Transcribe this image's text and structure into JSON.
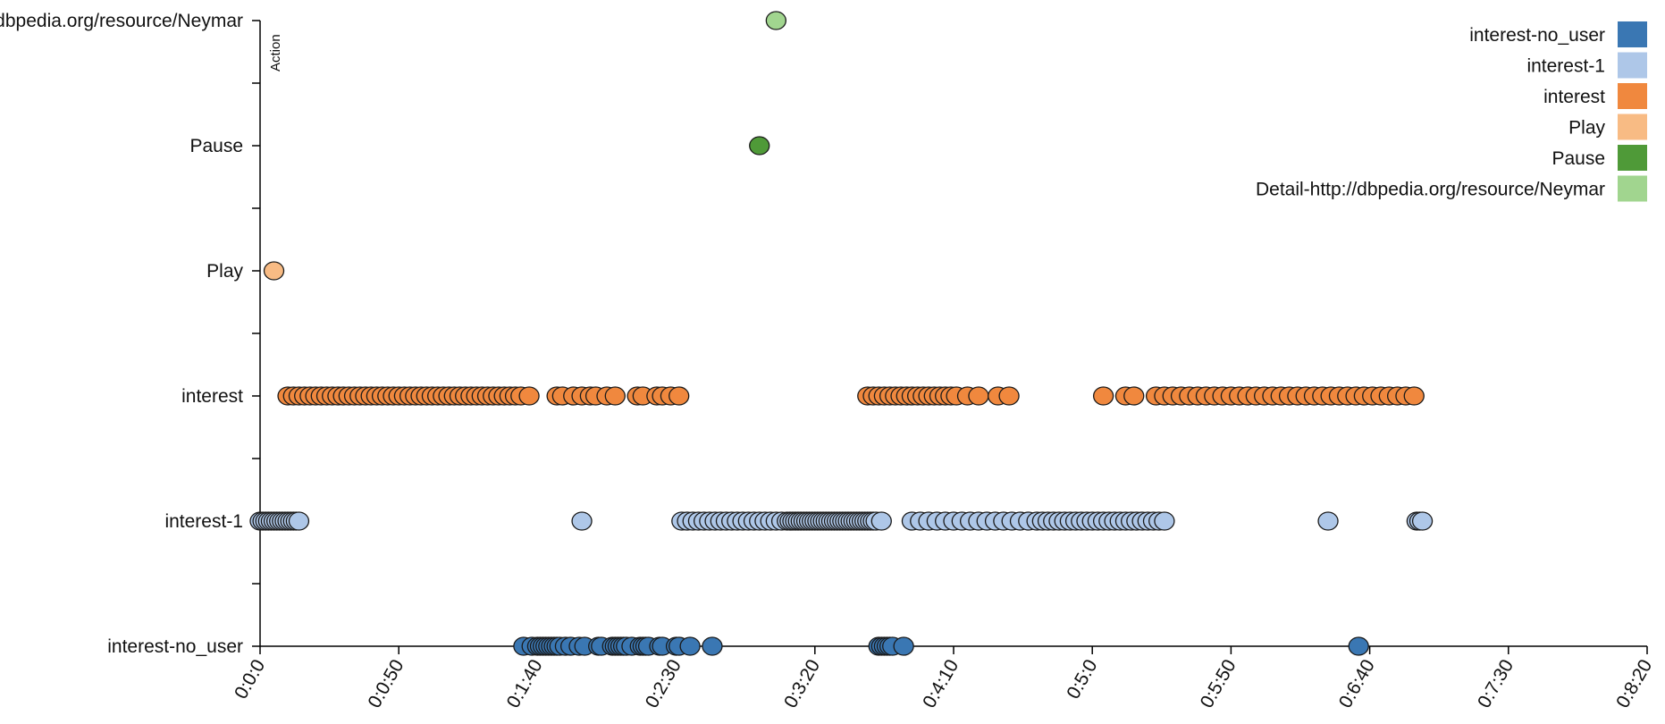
{
  "chart_data": {
    "type": "scatter",
    "title": "",
    "xlabel": "",
    "ylabel": "Action",
    "xlim": [
      0,
      500
    ],
    "x_ticks": [
      {
        "value": 0,
        "label": "0:0:0"
      },
      {
        "value": 50,
        "label": "0:0:50"
      },
      {
        "value": 100,
        "label": "0:1:40"
      },
      {
        "value": 150,
        "label": "0:2:30"
      },
      {
        "value": 200,
        "label": "0:3:20"
      },
      {
        "value": 250,
        "label": "0:4:10"
      },
      {
        "value": 300,
        "label": "0:5:0"
      },
      {
        "value": 350,
        "label": "0:5:50"
      },
      {
        "value": 400,
        "label": "0:6:40"
      },
      {
        "value": 450,
        "label": "0:7:30"
      },
      {
        "value": 500,
        "label": "0:8:20"
      }
    ],
    "y_categories": [
      "interest-no_user",
      "interest-1",
      "interest",
      "Play",
      "Pause",
      "Detail-http://dbpedia.org/resource/Neymar"
    ],
    "y_tick_labels": [
      "interest-no_user",
      "interest-1",
      "interest",
      "Play",
      "Pause",
      "Detail-http://dbpedia.org/resource/Neymar"
    ],
    "legend_position": "top-right",
    "grid": false,
    "series": [
      {
        "name": "interest-no_user",
        "color": "#3a77b3",
        "x": [
          95,
          98,
          100,
          101,
          102,
          103,
          104,
          105,
          106,
          107,
          108,
          110,
          112,
          115,
          117,
          122,
          123,
          127,
          128,
          129,
          130,
          131,
          132,
          134,
          137,
          138,
          139,
          140,
          144,
          145,
          150,
          151,
          155,
          163,
          223,
          224,
          225,
          226,
          227,
          228,
          232,
          396
        ]
      },
      {
        "name": "interest-1",
        "color": "#aec7e8",
        "x": [
          0,
          1,
          2,
          3,
          4,
          5,
          6,
          7,
          8,
          9,
          10,
          11,
          12,
          13,
          14,
          116,
          152,
          154,
          156,
          158,
          160,
          162,
          164,
          166,
          168,
          170,
          172,
          174,
          176,
          178,
          180,
          182,
          184,
          186,
          188,
          190,
          191,
          192,
          193,
          194,
          195,
          196,
          197,
          198,
          199,
          200,
          201,
          202,
          203,
          204,
          205,
          206,
          207,
          208,
          209,
          210,
          211,
          212,
          213,
          214,
          215,
          216,
          217,
          218,
          219,
          220,
          221,
          222,
          224,
          235,
          238,
          241,
          244,
          247,
          250,
          253,
          256,
          259,
          262,
          265,
          268,
          271,
          274,
          277,
          280,
          282,
          284,
          286,
          288,
          290,
          292,
          294,
          296,
          298,
          300,
          302,
          304,
          306,
          308,
          310,
          312,
          314,
          316,
          318,
          320,
          322,
          324,
          326,
          385,
          417,
          418,
          419
        ]
      },
      {
        "name": "interest",
        "color": "#f0883e",
        "x": [
          10,
          12,
          14,
          16,
          18,
          20,
          22,
          24,
          26,
          28,
          30,
          32,
          34,
          36,
          38,
          40,
          42,
          44,
          46,
          48,
          50,
          52,
          54,
          56,
          58,
          60,
          62,
          64,
          66,
          68,
          70,
          72,
          74,
          76,
          78,
          80,
          82,
          84,
          86,
          88,
          90,
          92,
          94,
          97,
          107,
          109,
          113,
          116,
          119,
          121,
          125,
          128,
          136,
          138,
          143,
          145,
          148,
          151,
          219,
          221,
          223,
          225,
          227,
          229,
          231,
          233,
          235,
          237,
          239,
          241,
          243,
          245,
          247,
          249,
          251,
          255,
          259,
          266,
          270,
          304,
          312,
          315,
          323,
          326,
          329,
          332,
          335,
          338,
          341,
          344,
          347,
          350,
          353,
          356,
          359,
          362,
          365,
          368,
          371,
          374,
          377,
          380,
          383,
          386,
          389,
          392,
          395,
          398,
          401,
          404,
          407,
          410,
          413,
          416
        ]
      },
      {
        "name": "Play",
        "color": "#f8bb84",
        "x": [
          5
        ]
      },
      {
        "name": "Pause",
        "color": "#4f9a38",
        "x": [
          180
        ]
      },
      {
        "name": "Detail-http://dbpedia.org/resource/Neymar",
        "color": "#a1d58f",
        "x": [
          186
        ]
      }
    ]
  }
}
